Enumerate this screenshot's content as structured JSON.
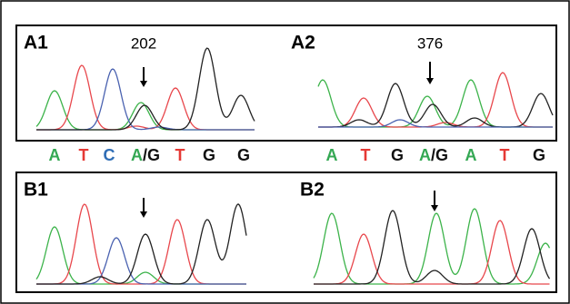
{
  "panels": [
    {
      "label": "A1",
      "position": 202,
      "bases": [
        "A",
        "T",
        "C",
        [
          "A",
          "/G"
        ],
        "T",
        "G",
        "G"
      ]
    },
    {
      "label": "A2",
      "position": 376,
      "bases": [
        "A",
        "T",
        "G",
        [
          "A",
          "/G"
        ],
        "A",
        "T",
        "G"
      ]
    },
    {
      "label": "B1"
    },
    {
      "label": "B2"
    }
  ]
}
